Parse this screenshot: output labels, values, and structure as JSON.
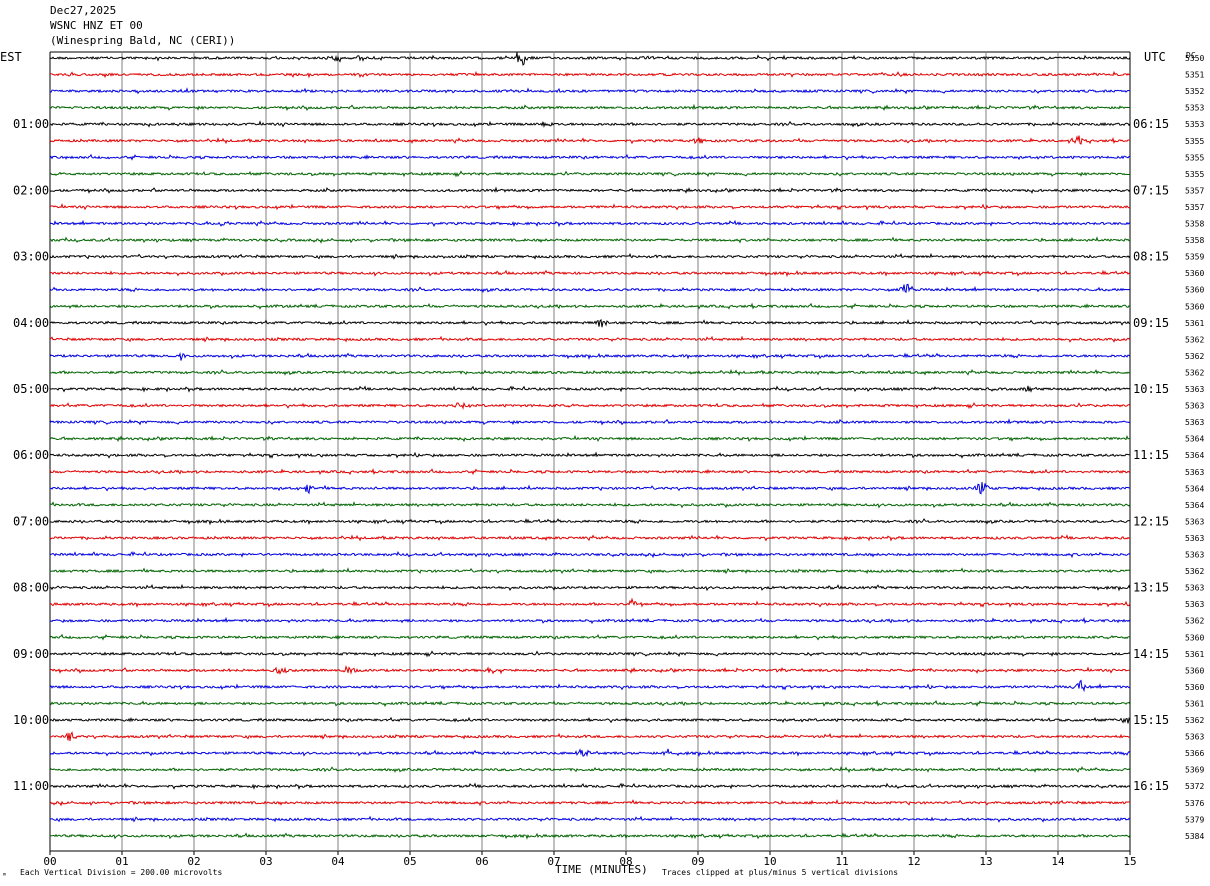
{
  "header": {
    "date": "Dec27,2025",
    "station": "WSNC HNZ ET 00",
    "location": "(Winespring Bald, NC (CERI))"
  },
  "left_axis_label": "EST",
  "right_axis_label": "UTC",
  "dc_label": "DC",
  "footer": {
    "x_axis_title": "TIME (MINUTES)",
    "scale_note": "Each Vertical Division =  200.00 microvolts",
    "clip_note": "Traces clipped at plus/minus 5 vertical divisions",
    "corner_mark": "ᵐ"
  },
  "colors": {
    "traces": [
      "#000000",
      "#e00000",
      "#0000e0",
      "#006400"
    ],
    "grid": "#7f7f7f"
  },
  "chart_data": {
    "type": "line",
    "title": "",
    "x_range": [
      0,
      15
    ],
    "x_ticks": [
      "00",
      "01",
      "02",
      "03",
      "04",
      "05",
      "06",
      "07",
      "08",
      "09",
      "10",
      "11",
      "12",
      "13",
      "14",
      "15"
    ],
    "traces_per_hour": 4,
    "trace_count": 48,
    "est_hour_labels": [
      "01:00",
      "02:00",
      "03:00",
      "04:00",
      "05:00",
      "06:00",
      "07:00",
      "08:00",
      "09:00",
      "10:00",
      "11:00"
    ],
    "utc_hour_labels": [
      "06:15",
      "07:15",
      "08:15",
      "09:15",
      "10:15",
      "11:15",
      "12:15",
      "13:15",
      "14:15",
      "15:15",
      "16:15"
    ],
    "dc_offsets": [
      "5350",
      "5351",
      "5352",
      "5353",
      "5353",
      "5355",
      "5355",
      "5355",
      "5357",
      "5357",
      "5358",
      "5358",
      "5359",
      "5360",
      "5360",
      "5360",
      "5361",
      "5362",
      "5362",
      "5362",
      "5363",
      "5363",
      "5363",
      "5364",
      "5364",
      "5363",
      "5364",
      "5364",
      "5363",
      "5363",
      "5363",
      "5362",
      "5363",
      "5363",
      "5362",
      "5360",
      "5361",
      "5360",
      "5360",
      "5361",
      "5362",
      "5363",
      "5366",
      "5369",
      "5372",
      "5376",
      "5379",
      "5384"
    ],
    "events": [
      {
        "trace": 0,
        "minute": 6.55,
        "amplitude": 4.5
      },
      {
        "trace": 0,
        "minute": 3.95,
        "amplitude": 2.0
      },
      {
        "trace": 0,
        "minute": 4.3,
        "amplitude": 1.5
      },
      {
        "trace": 4,
        "minute": 6.9,
        "amplitude": 1.5
      },
      {
        "trace": 5,
        "minute": 9.0,
        "amplitude": 1.6
      },
      {
        "trace": 5,
        "minute": 14.3,
        "amplitude": 2.0
      },
      {
        "trace": 10,
        "minute": 2.4,
        "amplitude": 1.3
      },
      {
        "trace": 14,
        "minute": 11.9,
        "amplitude": 3.5
      },
      {
        "trace": 16,
        "minute": 7.65,
        "amplitude": 3.0
      },
      {
        "trace": 18,
        "minute": 1.8,
        "amplitude": 1.5
      },
      {
        "trace": 20,
        "minute": 13.6,
        "amplitude": 1.5
      },
      {
        "trace": 21,
        "minute": 5.7,
        "amplitude": 1.5
      },
      {
        "trace": 26,
        "minute": 3.6,
        "amplitude": 2.0
      },
      {
        "trace": 26,
        "minute": 12.95,
        "amplitude": 4.0
      },
      {
        "trace": 33,
        "minute": 8.1,
        "amplitude": 2.5
      },
      {
        "trace": 37,
        "minute": 3.2,
        "amplitude": 2.2
      },
      {
        "trace": 37,
        "minute": 4.15,
        "amplitude": 2.5
      },
      {
        "trace": 37,
        "minute": 6.15,
        "amplitude": 2.2
      },
      {
        "trace": 38,
        "minute": 14.3,
        "amplitude": 3.0
      },
      {
        "trace": 40,
        "minute": 14.95,
        "amplitude": 1.5
      },
      {
        "trace": 41,
        "minute": 0.3,
        "amplitude": 2.2
      },
      {
        "trace": 42,
        "minute": 7.4,
        "amplitude": 2.0
      },
      {
        "trace": 42,
        "minute": 8.6,
        "amplitude": 1.8
      }
    ]
  }
}
